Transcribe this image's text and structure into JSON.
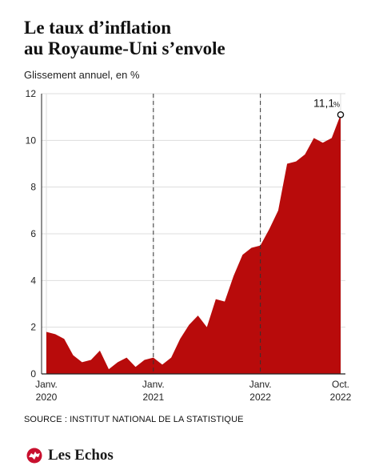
{
  "header": {
    "title_line1": "Le taux d’inflation",
    "title_line2": "au Royaume-Uni s’envole",
    "subtitle": "Glissement annuel, en %"
  },
  "footer": {
    "source": "SOURCE : INSTITUT NATIONAL DE LA STATISTIQUE",
    "logo_text": "Les Echos"
  },
  "colors": {
    "area": "#b80b0b",
    "grid": "#dddddd",
    "axis": "#222222",
    "text": "#222222"
  },
  "chart_data": {
    "type": "area",
    "title": "Le taux d’inflation au Royaume-Uni s’envole",
    "ylabel": "Glissement annuel, en %",
    "xlabel": "",
    "ylim": [
      0,
      12
    ],
    "yticks": [
      0,
      2,
      4,
      6,
      8,
      10,
      12
    ],
    "grid": true,
    "xrange": [
      "2020-01",
      "2022-10"
    ],
    "xticks": [
      {
        "date": "2020-01",
        "label1": "Janv.",
        "label2": "2020"
      },
      {
        "date": "2021-01",
        "label1": "Janv.",
        "label2": "2021"
      },
      {
        "date": "2022-01",
        "label1": "Janv.",
        "label2": "2022"
      },
      {
        "date": "2022-10",
        "label1": "Oct.",
        "label2": "2022"
      }
    ],
    "dashed_lines": [
      "2021-01",
      "2022-01"
    ],
    "annotation": {
      "date": "2022-10",
      "value": "11,1",
      "unit": "%"
    },
    "x": [
      "2020-01",
      "2020-02",
      "2020-03",
      "2020-04",
      "2020-05",
      "2020-06",
      "2020-07",
      "2020-08",
      "2020-09",
      "2020-10",
      "2020-11",
      "2020-12",
      "2021-01",
      "2021-02",
      "2021-03",
      "2021-04",
      "2021-05",
      "2021-06",
      "2021-07",
      "2021-08",
      "2021-09",
      "2021-10",
      "2021-11",
      "2021-12",
      "2022-01",
      "2022-02",
      "2022-03",
      "2022-04",
      "2022-05",
      "2022-06",
      "2022-07",
      "2022-08",
      "2022-09",
      "2022-10"
    ],
    "values": [
      1.8,
      1.7,
      1.5,
      0.8,
      0.5,
      0.6,
      1.0,
      0.2,
      0.5,
      0.7,
      0.3,
      0.6,
      0.7,
      0.4,
      0.7,
      1.5,
      2.1,
      2.5,
      2.0,
      3.2,
      3.1,
      4.2,
      5.1,
      5.4,
      5.5,
      6.2,
      7.0,
      9.0,
      9.1,
      9.4,
      10.1,
      9.9,
      10.1,
      11.1
    ]
  }
}
